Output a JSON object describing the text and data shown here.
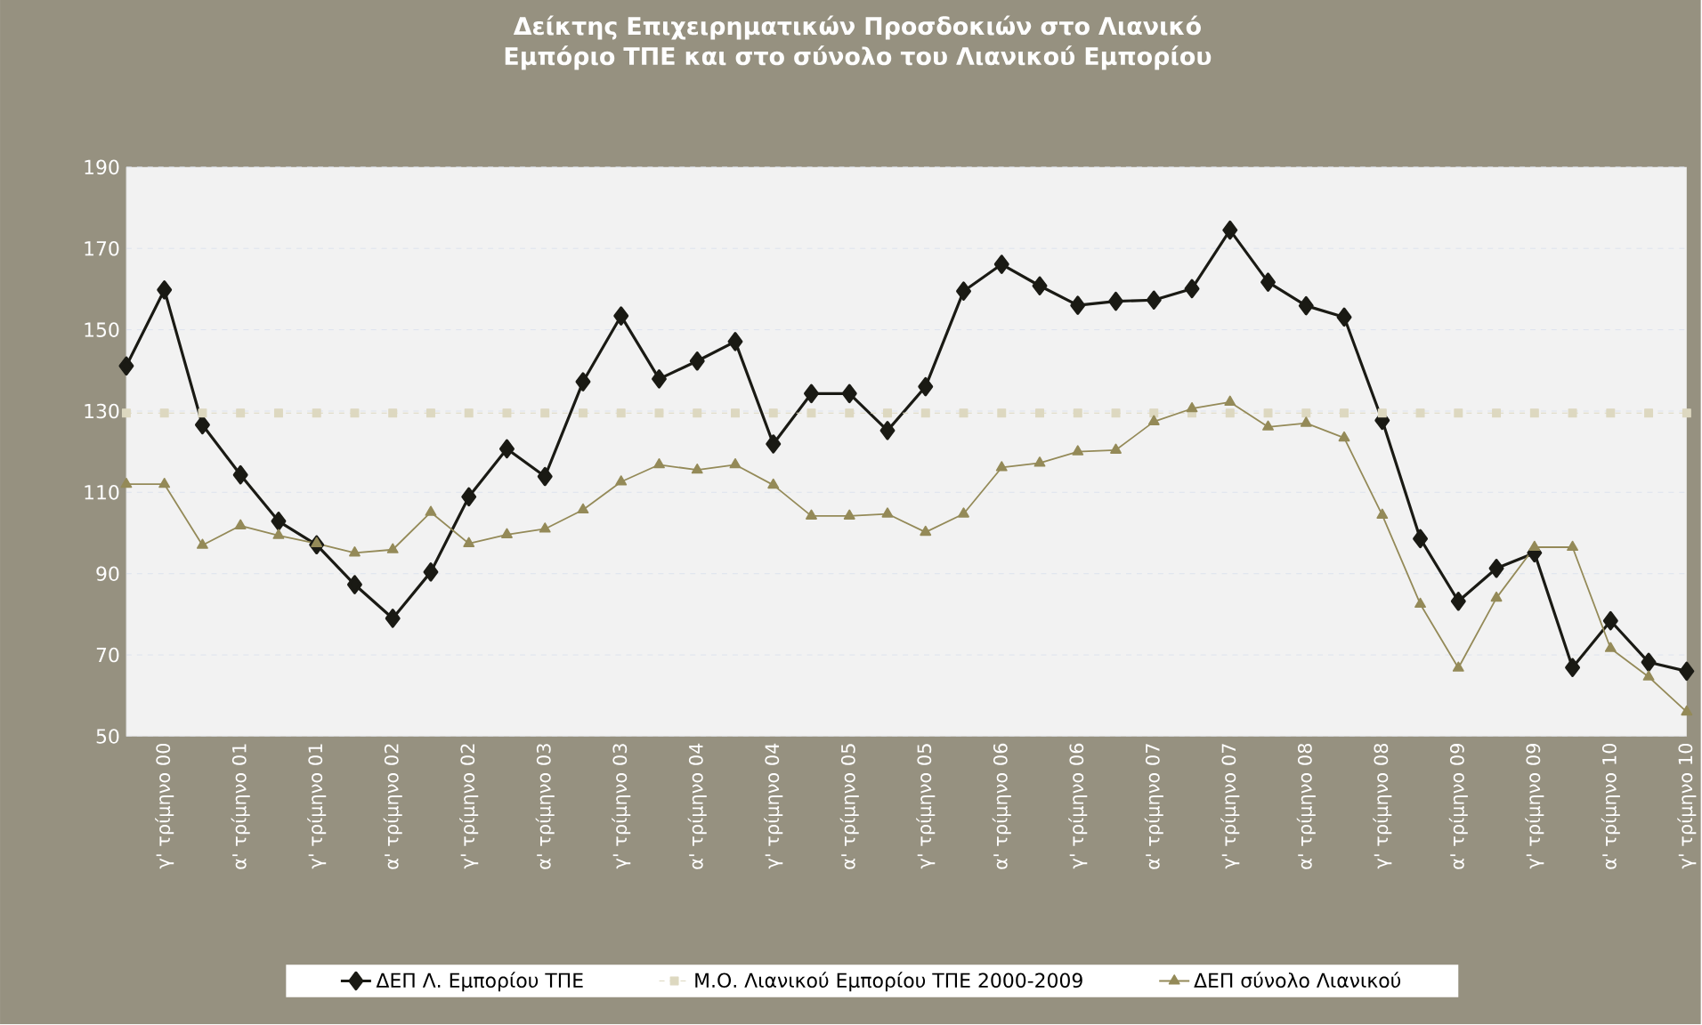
{
  "chart_data": {
    "type": "line",
    "title": "Δείκτης Επιχειρηματικών Προσδοκιών στο Λιανικό Εμπόριο ΤΠΕ και στο σύνολο του Λιανικού Εμπορίου",
    "categories": [
      null,
      "γ' τρίμηνο 00",
      null,
      "α' τρίμηνο 01",
      null,
      "γ' τρίμηνο 01",
      null,
      "α' τρίμηνο 02",
      null,
      "γ' τρίμηνο 02",
      null,
      "α' τρίμηνο 03",
      null,
      "γ' τρίμηνο 03",
      null,
      "α' τρίμηνο 04",
      null,
      "γ' τρίμηνο 04",
      null,
      "α' τρίμηνο 05",
      null,
      "γ' τρίμηνο 05",
      null,
      "α' τρίμηνο 06",
      null,
      "γ' τρίμηνο 06",
      null,
      "α' τρίμηνο 07",
      null,
      "γ' τρίμηνο 07",
      null,
      "α' τρίμηνο 08",
      null,
      "γ' τρίμηνο 08",
      null,
      "α' τρίμηνο 09",
      null,
      "γ' τρίμηνο 09",
      null,
      "α' τρίμηνο 10",
      null,
      "γ' τρίμηνο 10"
    ],
    "series": [
      {
        "name": "ΔΕΠ Λ. Εμπορίου ΤΠΕ",
        "color": "#1a1a14",
        "marker": "diamond",
        "line_style": "solid",
        "values": [
          141.1,
          159.8,
          126.6,
          114.3,
          102.9,
          97.1,
          87.3,
          79.0,
          90.4,
          108.9,
          120.7,
          113.9,
          137.2,
          153.4,
          137.9,
          142.3,
          147.1,
          121.9,
          134.3,
          134.3,
          125.2,
          136.0,
          159.5,
          166.1,
          160.8,
          156.0,
          157.0,
          157.3,
          160.1,
          174.5,
          161.7,
          155.9,
          153.1,
          127.7,
          98.6,
          83.2,
          91.3,
          95.1,
          66.9,
          78.4,
          68.2,
          66.0
        ]
      },
      {
        "name": "Μ.Ο. Λιανικού Εμπορίου ΤΠΕ 2000-2009",
        "color": "#ddd8c0",
        "marker": "square",
        "line_style": "dashed",
        "values": [
          129.5,
          129.5,
          129.5,
          129.5,
          129.5,
          129.5,
          129.5,
          129.5,
          129.5,
          129.5,
          129.5,
          129.5,
          129.5,
          129.5,
          129.5,
          129.5,
          129.5,
          129.5,
          129.5,
          129.5,
          129.5,
          129.5,
          129.5,
          129.5,
          129.5,
          129.5,
          129.5,
          129.5,
          129.5,
          129.5,
          129.5,
          129.5,
          129.5,
          129.5,
          129.5,
          129.5,
          129.5,
          129.5,
          129.5,
          129.5,
          129.5,
          129.5
        ]
      },
      {
        "name": "ΔΕΠ σύνολο Λιανικού",
        "color": "#948a58",
        "marker": "triangle",
        "line_style": "solid",
        "values": [
          112.0,
          112.0,
          97.0,
          101.8,
          99.4,
          97.4,
          95.1,
          95.9,
          105.1,
          97.4,
          99.6,
          101.0,
          105.7,
          112.6,
          116.8,
          115.5,
          116.8,
          111.8,
          104.2,
          104.2,
          104.7,
          100.2,
          104.7,
          116.1,
          117.2,
          120.0,
          120.4,
          127.4,
          130.6,
          132.2,
          126.1,
          127.0,
          123.4,
          104.4,
          82.5,
          66.8,
          84.0,
          96.5,
          96.5,
          71.6,
          64.6,
          56.0
        ]
      }
    ],
    "ylim": [
      50,
      190
    ],
    "yticks": [
      50,
      70,
      90,
      110,
      130,
      150,
      170,
      190
    ],
    "grid": "y",
    "legend": "bottom"
  }
}
